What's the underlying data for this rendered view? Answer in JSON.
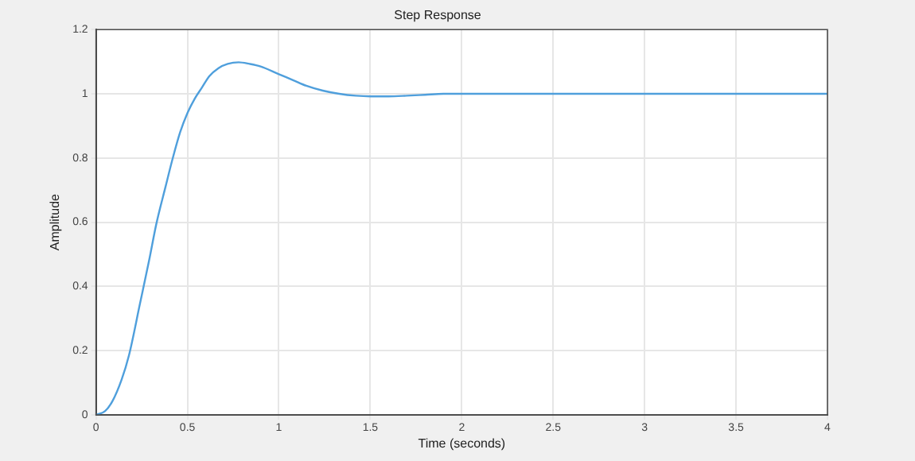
{
  "chart_data": {
    "type": "line",
    "title": "Step Response",
    "xlabel": "Time (seconds)",
    "ylabel": "Amplitude",
    "x": [
      0,
      0.05,
      0.09,
      0.14,
      0.18,
      0.24,
      0.29,
      0.33,
      0.38,
      0.42,
      0.46,
      0.5,
      0.54,
      0.58,
      0.62,
      0.67,
      0.72,
      0.78,
      0.84,
      0.9,
      1.0,
      1.08,
      1.15,
      1.24,
      1.33,
      1.42,
      1.5,
      1.6,
      1.7,
      1.8,
      1.9,
      2.0,
      2.5,
      3.0,
      3.5,
      4.0
    ],
    "series": [
      {
        "color": "#4f9fdc",
        "values": [
          0,
          0.012,
          0.043,
          0.11,
          0.185,
          0.345,
          0.48,
          0.595,
          0.71,
          0.8,
          0.88,
          0.94,
          0.985,
          1.02,
          1.055,
          1.08,
          1.093,
          1.098,
          1.093,
          1.085,
          1.061,
          1.042,
          1.025,
          1.01,
          1.0,
          0.994,
          0.992,
          0.992,
          0.994,
          0.997,
          1.0,
          1.0,
          1.0,
          1.0,
          1.0,
          1.0
        ]
      }
    ],
    "xlim": [
      0,
      4
    ],
    "xticks": [
      0,
      0.5,
      1,
      1.5,
      2,
      2.5,
      3,
      3.5,
      4
    ],
    "ylim": [
      0,
      1.2
    ],
    "yticks": [
      0,
      0.2,
      0.4,
      0.6,
      0.8,
      1,
      1.2
    ],
    "grid": true,
    "marker": "none",
    "line_style": "solid"
  }
}
